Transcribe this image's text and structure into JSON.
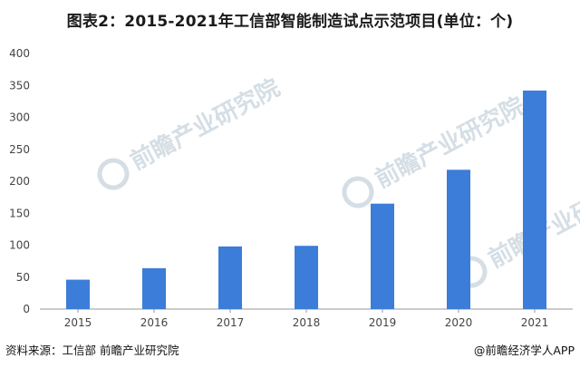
{
  "title": "图表2：2015-2021年工信部智能制造试点示范项目(单位：个)",
  "source": {
    "left": "资料来源：工信部 前瞻产业研究院",
    "right": "@前瞻经济学人APP"
  },
  "watermark": {
    "brand": "前瞻产业研究院"
  },
  "colors": {
    "bar": "#3b7dd8",
    "axis": "#999999",
    "watermark": "#c7d3dd"
  },
  "chart_data": {
    "type": "bar",
    "title": "图表2：2015-2021年工信部智能制造试点示范项目(单位：个)",
    "xlabel": "",
    "ylabel": "",
    "categories": [
      "2015",
      "2016",
      "2017",
      "2018",
      "2019",
      "2020",
      "2021"
    ],
    "values": [
      46,
      64,
      98,
      99,
      165,
      218,
      342
    ],
    "ylim": [
      0,
      400
    ],
    "yticks": [
      "0",
      "50",
      "100",
      "150",
      "200",
      "250",
      "300",
      "350",
      "400"
    ],
    "grid": false,
    "legend": "none"
  }
}
